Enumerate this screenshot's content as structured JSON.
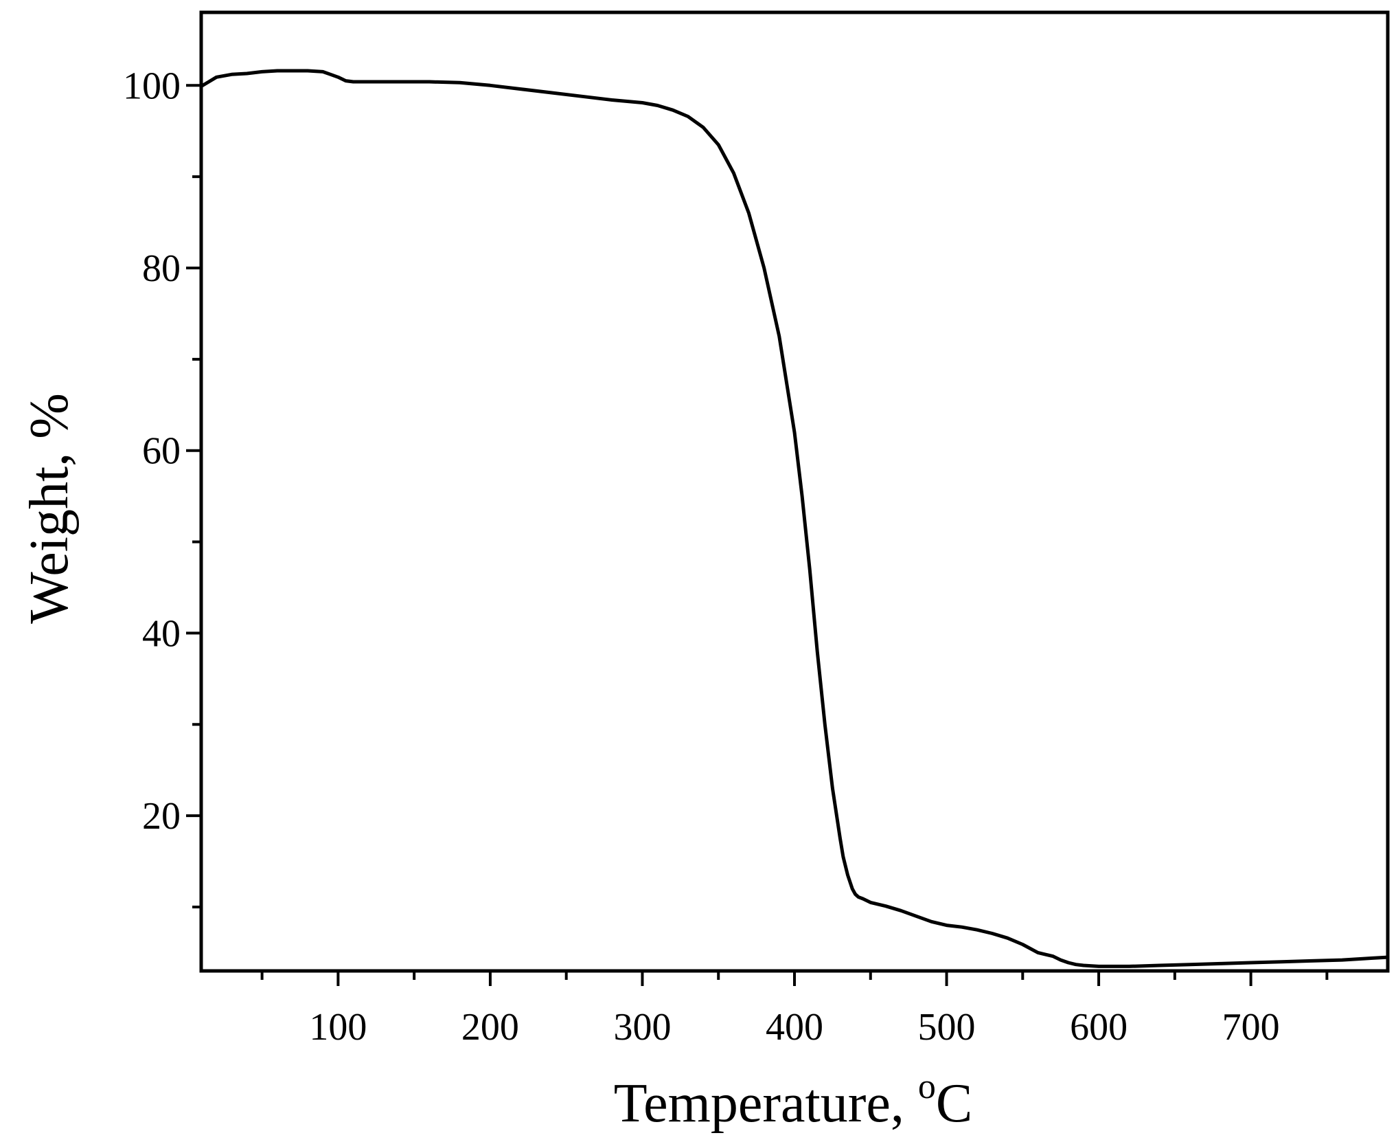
{
  "chart_data": {
    "type": "line",
    "xlabel": "Temperature, ",
    "xlabel_unit": "C",
    "xlabel_unit_prefix": "o",
    "ylabel": "Weight, %",
    "xlim": [
      10,
      790
    ],
    "ylim": [
      3,
      108
    ],
    "x_ticks_major": [
      100,
      200,
      300,
      400,
      500,
      600,
      700
    ],
    "x_ticks_minor": [
      50,
      150,
      250,
      350,
      450,
      550,
      650,
      750
    ],
    "y_ticks_major": [
      20,
      40,
      60,
      80,
      100
    ],
    "y_ticks_minor": [
      10,
      30,
      50,
      70,
      90
    ],
    "grid": false,
    "line_color": "#000000",
    "series": [
      {
        "x": [
          10,
          15,
          20,
          30,
          40,
          50,
          60,
          70,
          80,
          90,
          95,
          100,
          105,
          110,
          120,
          140,
          160,
          180,
          200,
          220,
          240,
          260,
          280,
          300,
          310,
          320,
          330,
          340,
          350,
          360,
          370,
          380,
          390,
          400,
          405,
          410,
          415,
          420,
          425,
          430,
          432,
          435,
          438,
          440,
          442,
          445,
          450,
          460,
          470,
          480,
          490,
          500,
          510,
          520,
          530,
          540,
          550,
          560,
          570,
          575,
          580,
          585,
          590,
          600,
          610,
          620,
          640,
          660,
          680,
          700,
          720,
          740,
          760,
          780,
          790
        ],
        "y": [
          99.9,
          100.4,
          100.9,
          101.2,
          101.3,
          101.5,
          101.6,
          101.6,
          101.6,
          101.5,
          101.2,
          100.9,
          100.5,
          100.4,
          100.4,
          100.4,
          100.4,
          100.3,
          100.0,
          99.6,
          99.2,
          98.8,
          98.4,
          98.1,
          97.8,
          97.3,
          96.6,
          95.4,
          93.5,
          90.4,
          86.0,
          80.0,
          72.5,
          62.0,
          55.0,
          47.0,
          38.0,
          30.0,
          23.0,
          17.5,
          15.5,
          13.5,
          12.0,
          11.4,
          11.1,
          10.9,
          10.5,
          10.1,
          9.6,
          9.0,
          8.4,
          8.0,
          7.8,
          7.5,
          7.1,
          6.6,
          5.9,
          5.0,
          4.6,
          4.2,
          3.9,
          3.7,
          3.6,
          3.5,
          3.5,
          3.5,
          3.6,
          3.7,
          3.8,
          3.9,
          4.0,
          4.1,
          4.2,
          4.4,
          4.5
        ]
      }
    ]
  }
}
